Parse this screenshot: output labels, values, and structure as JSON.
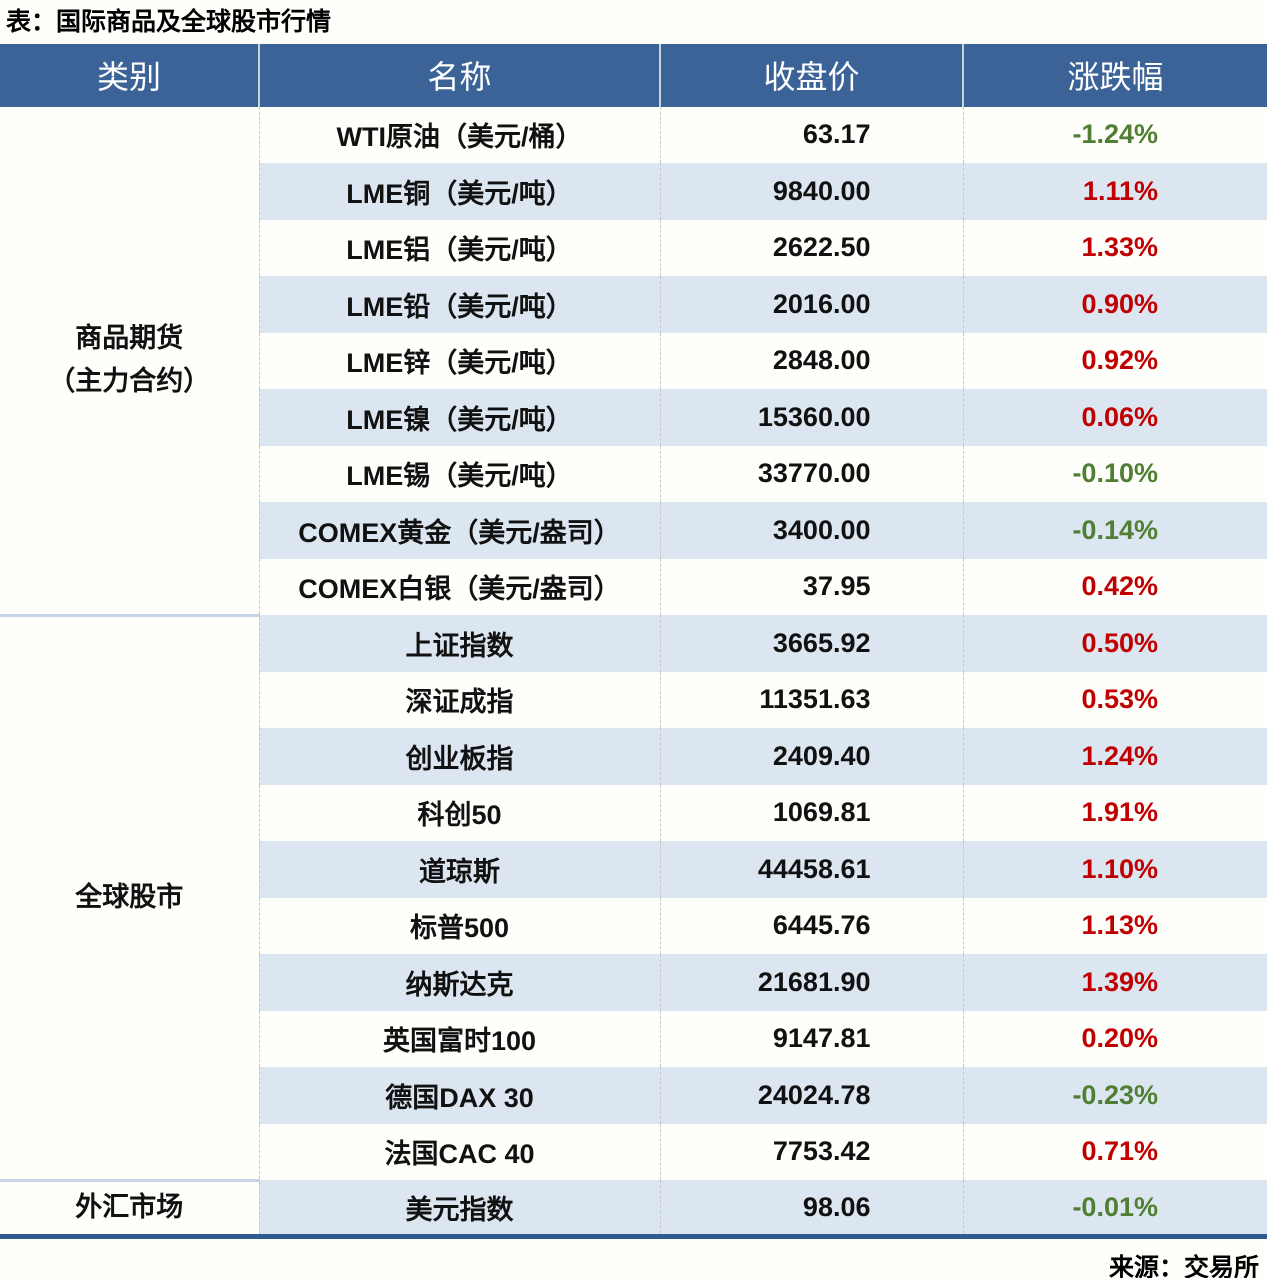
{
  "title": "表：国际商品及全球股市行情",
  "source": "来源：交易所",
  "table": {
    "headers": [
      "类别",
      "名称",
      "收盘价",
      "涨跌幅"
    ],
    "colors": {
      "up": "#C00000",
      "down": "#507E32",
      "header_bg": "#3B6397",
      "row_alt_bg": "#DCE6F1",
      "bottom_border": "#2F5B91"
    },
    "groups": [
      {
        "category_lines": [
          "商品期货",
          "（主力合约）"
        ],
        "rows": [
          {
            "name": "WTI原油（美元/桶）",
            "close": "63.17",
            "change": "-1.24%",
            "direction": "down"
          },
          {
            "name": "LME铜（美元/吨）",
            "close": "9840.00",
            "change": "1.11%",
            "direction": "up"
          },
          {
            "name": "LME铝（美元/吨）",
            "close": "2622.50",
            "change": "1.33%",
            "direction": "up"
          },
          {
            "name": "LME铅（美元/吨）",
            "close": "2016.00",
            "change": "0.90%",
            "direction": "up"
          },
          {
            "name": "LME锌（美元/吨）",
            "close": "2848.00",
            "change": "0.92%",
            "direction": "up"
          },
          {
            "name": "LME镍（美元/吨）",
            "close": "15360.00",
            "change": "0.06%",
            "direction": "up"
          },
          {
            "name": "LME锡（美元/吨）",
            "close": "33770.00",
            "change": "-0.10%",
            "direction": "down"
          },
          {
            "name": "COMEX黄金（美元/盎司）",
            "close": "3400.00",
            "change": "-0.14%",
            "direction": "down"
          },
          {
            "name": "COMEX白银（美元/盎司）",
            "close": "37.95",
            "change": "0.42%",
            "direction": "up"
          }
        ]
      },
      {
        "category_lines": [
          "全球股市"
        ],
        "rows": [
          {
            "name": "上证指数",
            "close": "3665.92",
            "change": "0.50%",
            "direction": "up"
          },
          {
            "name": "深证成指",
            "close": "11351.63",
            "change": "0.53%",
            "direction": "up"
          },
          {
            "name": "创业板指",
            "close": "2409.40",
            "change": "1.24%",
            "direction": "up"
          },
          {
            "name": "科创50",
            "close": "1069.81",
            "change": "1.91%",
            "direction": "up"
          },
          {
            "name": "道琼斯",
            "close": "44458.61",
            "change": "1.10%",
            "direction": "up"
          },
          {
            "name": "标普500",
            "close": "6445.76",
            "change": "1.13%",
            "direction": "up"
          },
          {
            "name": "纳斯达克",
            "close": "21681.90",
            "change": "1.39%",
            "direction": "up"
          },
          {
            "name": "英国富时100",
            "close": "9147.81",
            "change": "0.20%",
            "direction": "up"
          },
          {
            "name": "德国DAX 30",
            "close": "24024.78",
            "change": "-0.23%",
            "direction": "down"
          },
          {
            "name": "法国CAC 40",
            "close": "7753.42",
            "change": "0.71%",
            "direction": "up"
          }
        ]
      },
      {
        "category_lines": [
          "外汇市场"
        ],
        "rows": [
          {
            "name": "美元指数",
            "close": "98.06",
            "change": "-0.01%",
            "direction": "down"
          }
        ]
      }
    ]
  }
}
